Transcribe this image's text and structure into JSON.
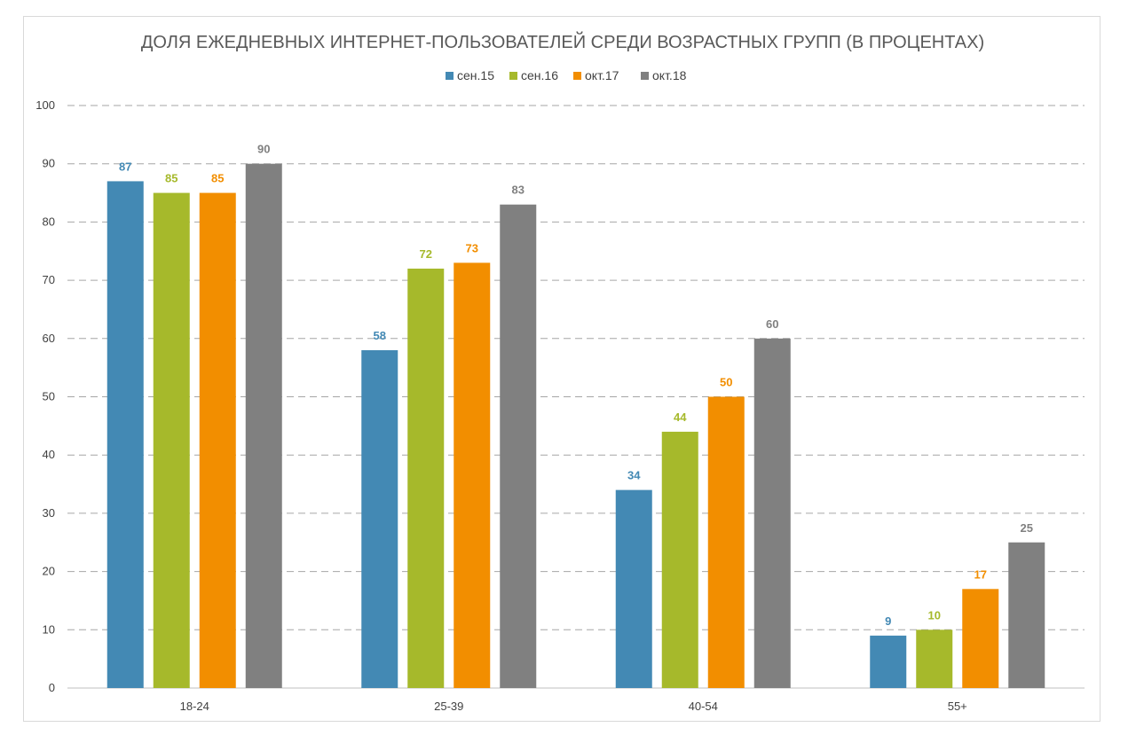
{
  "chart_data": {
    "type": "bar",
    "title": "ДОЛЯ ЕЖЕДНЕВНЫХ ИНТЕРНЕТ-ПОЛЬЗОВАТЕЛЕЙ СРЕДИ ВОЗРАСТНЫХ ГРУПП (В ПРОЦЕНТАХ)",
    "xlabel": "",
    "ylabel": "",
    "categories": [
      "18-24",
      "25-39",
      "40-54",
      "55+"
    ],
    "ylim": [
      0,
      100
    ],
    "yticks": [
      0,
      10,
      20,
      30,
      40,
      50,
      60,
      70,
      80,
      90,
      100
    ],
    "grid": true,
    "legend_position": "top",
    "series": [
      {
        "name": "сен.15",
        "color": "#4389b4",
        "values": [
          87,
          58,
          34,
          9
        ]
      },
      {
        "name": "сен.16",
        "color": "#a6b92b",
        "values": [
          85,
          72,
          44,
          10
        ]
      },
      {
        "name": "окт.17",
        "color": "#f28e00",
        "values": [
          85,
          73,
          50,
          17
        ]
      },
      {
        "name": "окт.18",
        "color": "#808080",
        "values": [
          90,
          83,
          60,
          25
        ]
      }
    ]
  }
}
